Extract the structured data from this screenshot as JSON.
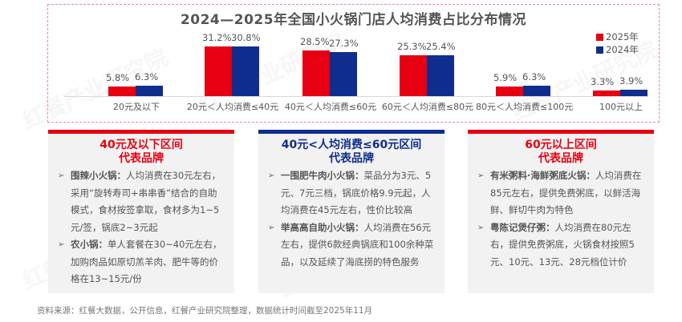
{
  "chart_data": {
    "type": "bar",
    "title": "2024—2025年全国小火锅门店人均消费占比分布情况",
    "categories": [
      "20元及以下",
      "20元＜人均消费≤40元",
      "40元＜人均消费≤60元",
      "60元＜人均消费≤80元",
      "80元＜人均消费≤100元",
      "100元以上"
    ],
    "series": [
      {
        "name": "2025年",
        "color": "#e60012",
        "values": [
          5.8,
          31.2,
          28.5,
          25.3,
          5.9,
          3.3
        ],
        "labels": [
          "5.8%",
          "31.2%",
          "28.5%",
          "25.3%",
          "5.9%",
          "3.3%"
        ]
      },
      {
        "name": "2024年",
        "color": "#0f2d8c",
        "values": [
          6.3,
          30.8,
          27.3,
          25.4,
          6.3,
          3.9
        ],
        "labels": [
          "6.3%",
          "30.8%",
          "27.3%",
          "25.4%",
          "6.3%",
          "3.9%"
        ]
      }
    ],
    "xlabel": "",
    "ylabel": "",
    "unit": "%",
    "ylim": [
      0,
      35
    ],
    "grid": false,
    "legend_position": "top-right",
    "data_labels": true
  },
  "legend": {
    "items": [
      {
        "label": "2025年",
        "color": "#e60012"
      },
      {
        "label": "2024年",
        "color": "#0f2d8c"
      }
    ]
  },
  "cards": [
    {
      "title_line1": "40元及以下区间",
      "title_line2": "代表品牌",
      "accent": "#e60012",
      "items": [
        {
          "brand": "围辣小火锅：",
          "text": "人均消费在30元左右，采用“旋转寿司+串串香”结合的自助模式，食材按签拿取，食材多为1~5元/签，锅底2~3元起"
        },
        {
          "brand": "农小锅：",
          "text": "单人套餐在30~40元左右，加购肉品如原切羔羊肉、肥牛等的价格在13~15元/份"
        }
      ]
    },
    {
      "title_line1": "40元<人均消费≤60元区间",
      "title_line2": "代表品牌",
      "accent": "#0f2d8c",
      "items": [
        {
          "brand": "一围肥牛肉小火锅：",
          "text": "菜品分为3元、5元、7元三档，锅底价格9.9元起，人均消费在45元左右，性价比较高"
        },
        {
          "brand": "举高高自助小火锅：",
          "text": "人均消费在56元左右，提供6款经典锅底和100余种菜品，以及延续了海底捞的特色服务"
        }
      ]
    },
    {
      "title_line1": "60元以上区间",
      "title_line2": "代表品牌",
      "accent": "#e60012",
      "items": [
        {
          "brand": "有米粥料·海鲜粥底火锅：",
          "text": "人均消费在85元左右，提供免费粥底，以鲜活海鲜、鲜切牛肉为特色"
        },
        {
          "brand": "粤陈记煲仔粥：",
          "text": "人均消费在80元左右，提供免费粥底，火锅食材按照5元、10元、13元、28元档位计价"
        }
      ]
    }
  ],
  "bullet_icon": "➢",
  "source": "资料来源：红餐大数据，公开信息，红餐产业研究院整理，数据统计时间截至2025年11月",
  "watermark": "红餐产业研究院"
}
